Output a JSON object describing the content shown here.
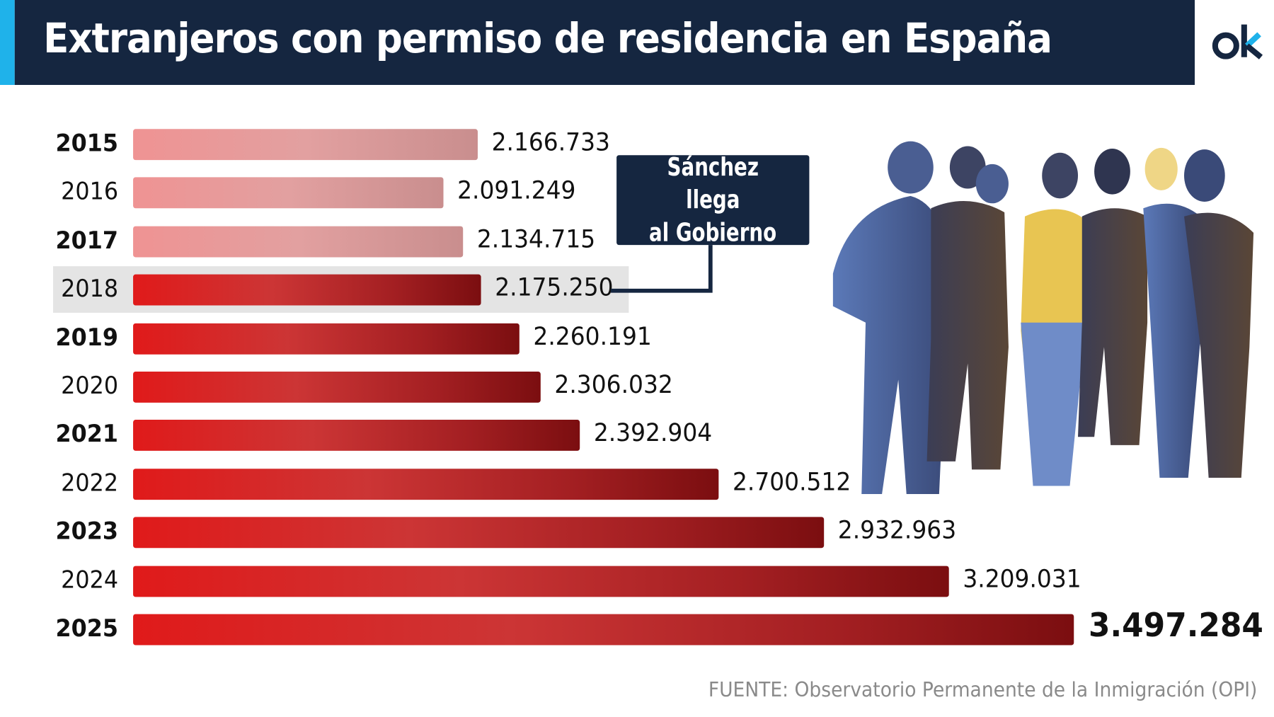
{
  "header": {
    "title": "Extranjeros con permiso de residencia en España",
    "logo": "ok"
  },
  "annotation": {
    "line1": "Sánchez llega",
    "line2": "al Gobierno",
    "year": "2018"
  },
  "source": "FUENTE: Observatorio Permanente de la Inmigración (OPI)",
  "colors": {
    "header_bg": "#152640",
    "accent": "#1fb2ea",
    "bar_before": "#e8a0a0",
    "bar_after": "#c62828",
    "highlight_row": "#e4e4e4"
  },
  "chart_data": {
    "type": "bar",
    "orientation": "horizontal",
    "title": "Extranjeros con permiso de residencia en España",
    "categories": [
      "2015",
      "2016",
      "2017",
      "2018",
      "2019",
      "2020",
      "2021",
      "2022",
      "2023",
      "2024",
      "2025"
    ],
    "values": [
      2166733,
      2091249,
      2134715,
      2175250,
      2260191,
      2306032,
      2392904,
      2700512,
      2932963,
      3209031,
      3497284
    ],
    "labels": [
      "2.166.733",
      "2.091.249",
      "2.134.715",
      "2.175.250",
      "2.260.191",
      "2.306.032",
      "2.392.904",
      "2.700.512",
      "2.932.963",
      "3.209.031",
      "3.497.284"
    ],
    "xlim": [
      1450000,
      3500000
    ],
    "highlight": "2018",
    "grid": false,
    "legend": "none"
  }
}
